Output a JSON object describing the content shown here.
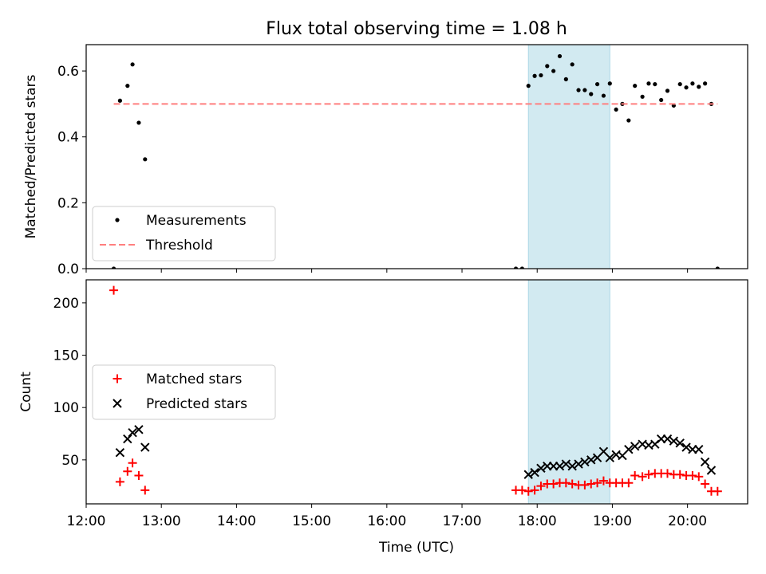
{
  "title": "Flux total observing time = 1.08 h",
  "xlabel": "Time (UTC)",
  "xticks": [
    "12:00",
    "13:00",
    "14:00",
    "15:00",
    "16:00",
    "17:00",
    "18:00",
    "19:00",
    "20:00"
  ],
  "highlight": {
    "start": "17:53",
    "end": "18:58",
    "color": "#add8e6"
  },
  "chart_data": [
    {
      "type": "scatter",
      "ylabel": "Matched/Predicted stars",
      "ylim": [
        0,
        0.68
      ],
      "yticks": [
        "0.0",
        "0.2",
        "0.4",
        "0.6"
      ],
      "xlim": [
        "12:00",
        "20:48"
      ],
      "grid": false,
      "legend": {
        "placement": "lower-left",
        "entries": [
          "Measurements",
          "Threshold"
        ]
      },
      "series": [
        {
          "name": "Measurements",
          "color": "#000000",
          "marker": "dot",
          "points": [
            [
              "12:22",
              0.0
            ],
            [
              "12:27",
              0.51
            ],
            [
              "12:33",
              0.555
            ],
            [
              "12:37",
              0.62
            ],
            [
              "12:42",
              0.443
            ],
            [
              "12:47",
              0.332
            ],
            [
              "17:43",
              0.0
            ],
            [
              "17:48",
              0.0
            ],
            [
              "17:53",
              0.555
            ],
            [
              "17:58",
              0.585
            ],
            [
              "18:03",
              0.587
            ],
            [
              "18:08",
              0.615
            ],
            [
              "18:13",
              0.6
            ],
            [
              "18:18",
              0.645
            ],
            [
              "18:23",
              0.575
            ],
            [
              "18:28",
              0.62
            ],
            [
              "18:33",
              0.542
            ],
            [
              "18:38",
              0.542
            ],
            [
              "18:43",
              0.53
            ],
            [
              "18:48",
              0.56
            ],
            [
              "18:53",
              0.525
            ],
            [
              "18:58",
              0.562
            ],
            [
              "19:03",
              0.483
            ],
            [
              "19:08",
              0.5
            ],
            [
              "19:13",
              0.45
            ],
            [
              "19:18",
              0.555
            ],
            [
              "19:24",
              0.522
            ],
            [
              "19:29",
              0.562
            ],
            [
              "19:34",
              0.56
            ],
            [
              "19:39",
              0.512
            ],
            [
              "19:44",
              0.54
            ],
            [
              "19:49",
              0.495
            ],
            [
              "19:54",
              0.56
            ],
            [
              "19:59",
              0.55
            ],
            [
              "20:04",
              0.562
            ],
            [
              "20:09",
              0.552
            ],
            [
              "20:14",
              0.562
            ],
            [
              "20:19",
              0.5
            ],
            [
              "20:24",
              0.0
            ]
          ]
        },
        {
          "name": "Threshold",
          "color": "#ff7f7f",
          "style": "dashed",
          "points": [
            [
              "12:22",
              0.5
            ],
            [
              "20:24",
              0.5
            ]
          ]
        }
      ]
    },
    {
      "type": "scatter",
      "ylabel": "Count",
      "ylim": [
        8,
        222
      ],
      "yticks": [
        "50",
        "100",
        "150",
        "200"
      ],
      "xlim": [
        "12:00",
        "20:48"
      ],
      "grid": false,
      "legend": {
        "placement": "center-left",
        "entries": [
          "Matched stars",
          "Predicted stars"
        ]
      },
      "series": [
        {
          "name": "Matched stars",
          "color": "#ff0000",
          "marker": "plus",
          "points": [
            [
              "12:22",
              212
            ],
            [
              "12:27",
              29
            ],
            [
              "12:33",
              39
            ],
            [
              "12:37",
              47
            ],
            [
              "12:42",
              35
            ],
            [
              "12:47",
              21
            ],
            [
              "17:43",
              21
            ],
            [
              "17:48",
              21
            ],
            [
              "17:53",
              20
            ],
            [
              "17:58",
              21
            ],
            [
              "18:03",
              25
            ],
            [
              "18:08",
              27
            ],
            [
              "18:13",
              27
            ],
            [
              "18:18",
              28
            ],
            [
              "18:23",
              28
            ],
            [
              "18:28",
              27
            ],
            [
              "18:33",
              26
            ],
            [
              "18:38",
              26
            ],
            [
              "18:43",
              27
            ],
            [
              "18:48",
              28
            ],
            [
              "18:53",
              30
            ],
            [
              "18:58",
              28
            ],
            [
              "19:03",
              28
            ],
            [
              "19:08",
              28
            ],
            [
              "19:13",
              28
            ],
            [
              "19:18",
              35
            ],
            [
              "19:24",
              34
            ],
            [
              "19:29",
              36
            ],
            [
              "19:34",
              37
            ],
            [
              "19:39",
              37
            ],
            [
              "19:44",
              37
            ],
            [
              "19:49",
              36
            ],
            [
              "19:54",
              36
            ],
            [
              "19:59",
              35
            ],
            [
              "20:04",
              35
            ],
            [
              "20:09",
              34
            ],
            [
              "20:14",
              27
            ],
            [
              "20:19",
              20
            ],
            [
              "20:24",
              20
            ]
          ]
        },
        {
          "name": "Predicted stars",
          "color": "#000000",
          "marker": "x",
          "points": [
            [
              "12:27",
              57
            ],
            [
              "12:33",
              70
            ],
            [
              "12:37",
              76
            ],
            [
              "12:42",
              79
            ],
            [
              "12:47",
              62
            ],
            [
              "17:53",
              36
            ],
            [
              "17:58",
              38
            ],
            [
              "18:03",
              42
            ],
            [
              "18:08",
              44
            ],
            [
              "18:13",
              44
            ],
            [
              "18:18",
              44
            ],
            [
              "18:23",
              46
            ],
            [
              "18:28",
              44
            ],
            [
              "18:33",
              46
            ],
            [
              "18:38",
              48
            ],
            [
              "18:43",
              50
            ],
            [
              "18:48",
              52
            ],
            [
              "18:53",
              58
            ],
            [
              "18:58",
              52
            ],
            [
              "19:03",
              55
            ],
            [
              "19:08",
              54
            ],
            [
              "19:13",
              60
            ],
            [
              "19:18",
              63
            ],
            [
              "19:24",
              65
            ],
            [
              "19:29",
              64
            ],
            [
              "19:34",
              65
            ],
            [
              "19:39",
              70
            ],
            [
              "19:44",
              70
            ],
            [
              "19:49",
              68
            ],
            [
              "19:54",
              66
            ],
            [
              "19:59",
              62
            ],
            [
              "20:04",
              60
            ],
            [
              "20:09",
              60
            ],
            [
              "20:14",
              48
            ],
            [
              "20:19",
              40
            ]
          ]
        }
      ]
    }
  ]
}
